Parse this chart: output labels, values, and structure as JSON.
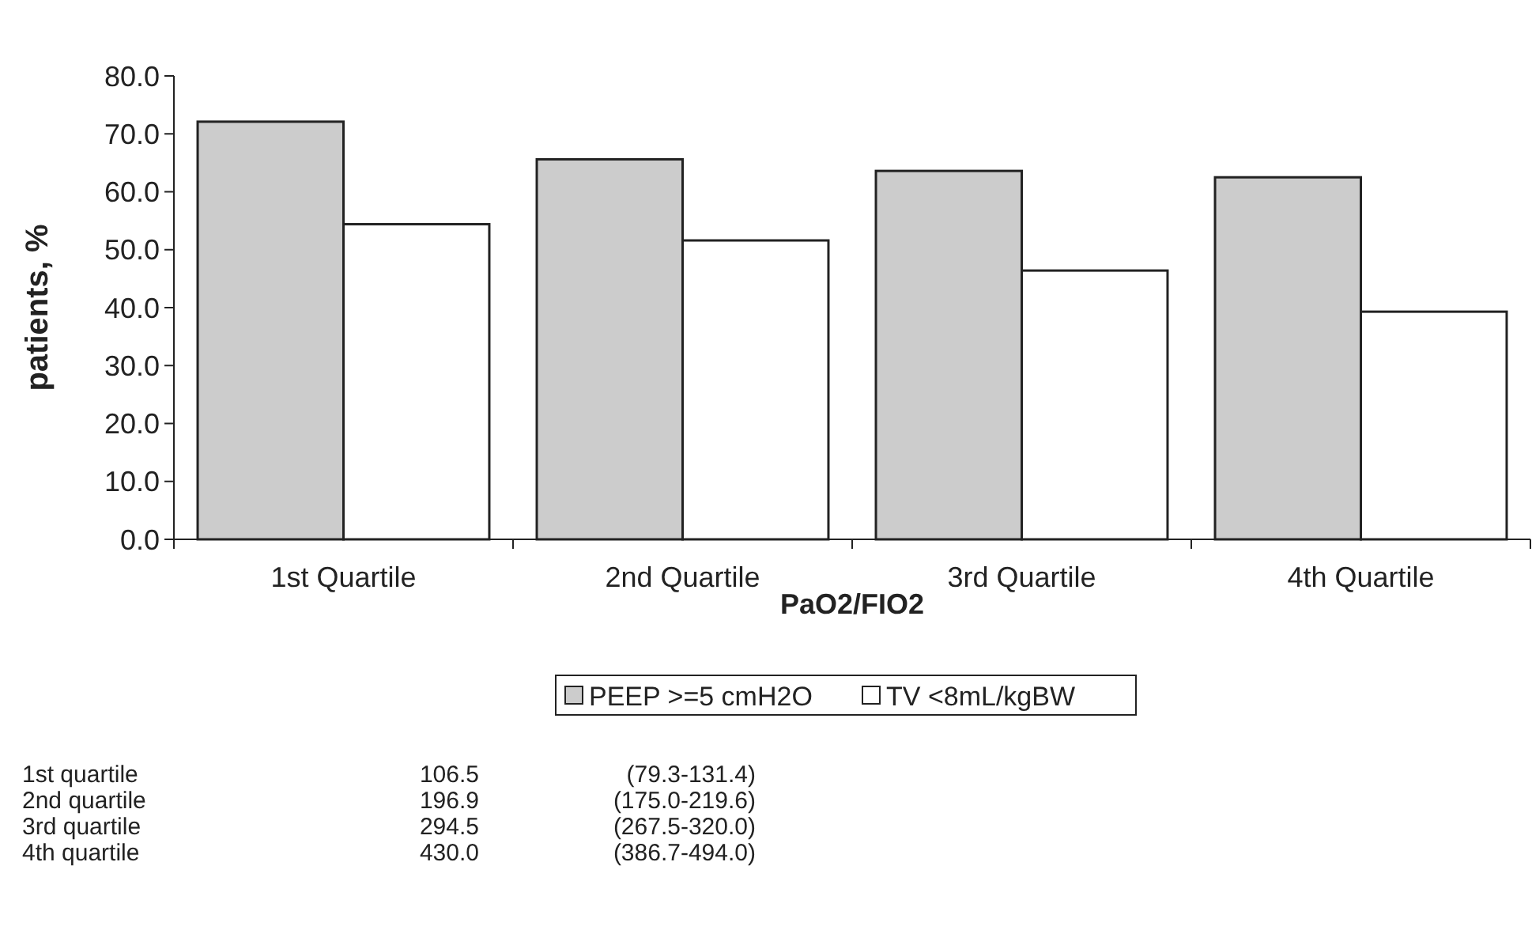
{
  "chart_data": {
    "type": "bar",
    "xlabel": "PaO2/FIO2",
    "ylabel": "patients, %",
    "categories": [
      "1st Quartile",
      "2nd Quartile",
      "3rd Quartile",
      "4th Quartile"
    ],
    "series": [
      {
        "name": "PEEP >=5 cmH2O",
        "color": "#cccccc",
        "values": [
          72.1,
          65.6,
          63.6,
          62.5
        ]
      },
      {
        "name": "TV <8mL/kgBW",
        "color": "#ffffff",
        "values": [
          54.4,
          51.6,
          46.4,
          39.3
        ]
      }
    ],
    "ylim": [
      0,
      80
    ],
    "yticks": [
      {
        "value": 0,
        "label": "0.0"
      },
      {
        "value": 10,
        "label": "10.0"
      },
      {
        "value": 20,
        "label": "20.0"
      },
      {
        "value": 30,
        "label": "30.0"
      },
      {
        "value": 40,
        "label": "40.0"
      },
      {
        "value": 50,
        "label": "50.0"
      },
      {
        "value": 60,
        "label": "60.0"
      },
      {
        "value": 70,
        "label": "70.0"
      },
      {
        "value": 80,
        "label": "80.0"
      }
    ],
    "grid": false,
    "legend": "bottom",
    "annotations": [
      "1st quartile",
      "106.5",
      "(79.3-131.4)",
      "2nd quartile",
      "196.9",
      "(175.0-219.6)",
      "3rd quartile",
      "294.5",
      "(267.5-320.0)",
      "4th quartile",
      "430.0",
      "(386.7-494.0)"
    ]
  }
}
